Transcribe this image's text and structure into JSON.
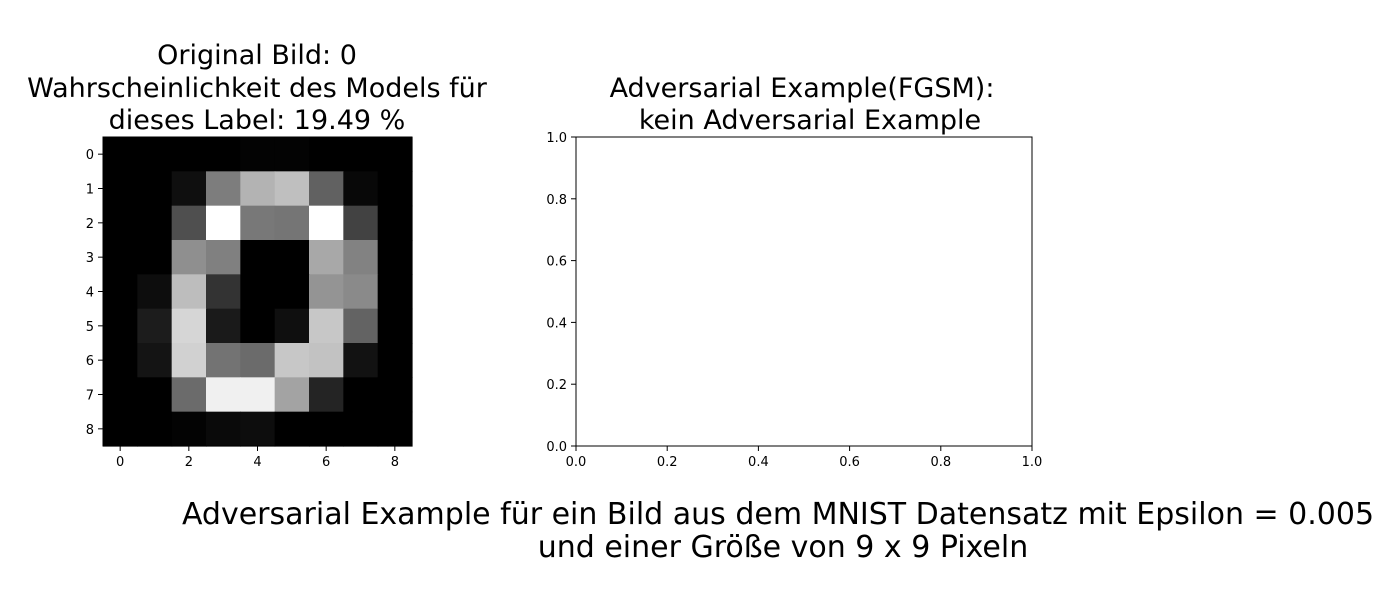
{
  "figure": {
    "suptitle_lines": [
      "Adversarial Example für ein Bild aus dem MNIST Datensatz mit Epsilon = 0.005",
      "und einer Größe von 9 x 9 Pixeln"
    ]
  },
  "chart_data": [
    {
      "type": "heatmap",
      "title_lines": [
        "Original Bild: 0",
        "Wahrscheinlichkeit des Models für",
        "dieses Label:    19.49 %"
      ],
      "colormap": "gray",
      "xlim": [
        -0.5,
        8.5
      ],
      "ylim": [
        8.5,
        -0.5
      ],
      "xticks": [
        0,
        2,
        4,
        6,
        8
      ],
      "yticks": [
        0,
        1,
        2,
        3,
        4,
        5,
        6,
        7,
        8
      ],
      "grid": false,
      "matrix": [
        [
          0.0,
          0.0,
          0.0,
          0.0,
          0.01,
          0.01,
          0.0,
          0.0,
          0.0
        ],
        [
          0.0,
          0.0,
          0.06,
          0.49,
          0.7,
          0.75,
          0.38,
          0.03,
          0.0
        ],
        [
          0.0,
          0.0,
          0.31,
          1.0,
          0.47,
          0.46,
          1.0,
          0.26,
          0.0
        ],
        [
          0.0,
          0.0,
          0.56,
          0.5,
          0.0,
          0.0,
          0.66,
          0.51,
          0.0
        ],
        [
          0.0,
          0.05,
          0.74,
          0.2,
          0.0,
          0.0,
          0.58,
          0.54,
          0.0
        ],
        [
          0.0,
          0.11,
          0.84,
          0.1,
          0.0,
          0.06,
          0.78,
          0.39,
          0.0
        ],
        [
          0.0,
          0.08,
          0.82,
          0.45,
          0.42,
          0.78,
          0.76,
          0.07,
          0.0
        ],
        [
          0.0,
          0.0,
          0.42,
          0.94,
          0.94,
          0.64,
          0.14,
          0.0,
          0.0
        ],
        [
          0.0,
          0.0,
          0.01,
          0.04,
          0.05,
          0.0,
          0.0,
          0.0,
          0.0
        ]
      ]
    },
    {
      "type": "empty",
      "title_lines": [
        "Adversarial Example(FGSM):",
        "kein Adversarial Example"
      ],
      "xlim": [
        0.0,
        1.0
      ],
      "ylim": [
        0.0,
        1.0
      ],
      "xticks": [
        0.0,
        0.2,
        0.4,
        0.6,
        0.8,
        1.0
      ],
      "yticks": [
        0.0,
        0.2,
        0.4,
        0.6,
        0.8,
        1.0
      ],
      "tick_format": "0.0",
      "grid": false
    }
  ]
}
